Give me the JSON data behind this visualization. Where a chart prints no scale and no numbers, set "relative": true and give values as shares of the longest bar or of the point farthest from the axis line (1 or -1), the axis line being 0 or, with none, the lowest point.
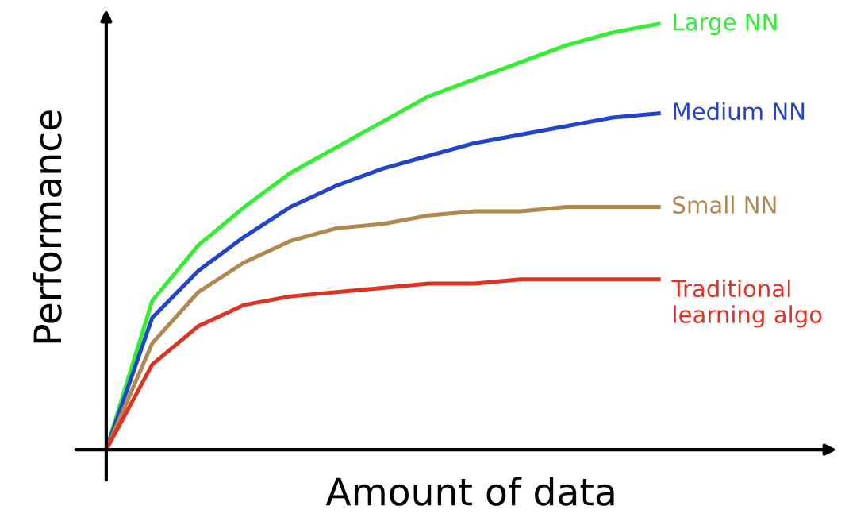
{
  "chart_data": {
    "type": "line",
    "relative": true,
    "xlabel": "Amount of data",
    "ylabel": "Performance",
    "legend": false,
    "marker": "none",
    "line_style": "solid",
    "categories": [
      null,
      null,
      null,
      null,
      null,
      null,
      null,
      null,
      null,
      null,
      null,
      null,
      null
    ],
    "series": [
      {
        "name": "Large NN",
        "color": "#33ee33",
        "values": [
          0,
          0.35,
          0.48,
          0.57,
          0.65,
          0.71,
          0.77,
          0.83,
          0.87,
          0.91,
          0.95,
          0.98,
          1
        ]
      },
      {
        "name": "Medium NN",
        "color": "#2244cc",
        "values": [
          0,
          0.31,
          0.42,
          0.5,
          0.57,
          0.62,
          0.66,
          0.69,
          0.72,
          0.74,
          0.76,
          0.78,
          0.79
        ]
      },
      {
        "name": "Small NN",
        "color": "#b08850",
        "values": [
          0,
          0.25,
          0.37,
          0.44,
          0.49,
          0.52,
          0.53,
          0.55,
          0.56,
          0.56,
          0.57,
          0.57,
          0.57
        ]
      },
      {
        "name": "Traditional\nlearning algo",
        "color": "#dd3322",
        "values": [
          0,
          0.2,
          0.29,
          0.34,
          0.36,
          0.37,
          0.38,
          0.39,
          0.39,
          0.4,
          0.4,
          0.4,
          0.4
        ]
      }
    ]
  }
}
